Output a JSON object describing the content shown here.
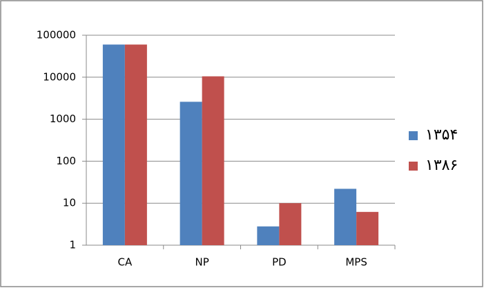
{
  "chart_data": {
    "type": "bar",
    "categories": [
      "CA",
      "NP",
      "PD",
      "MPS"
    ],
    "series": [
      {
        "name": "۱۳۵۴",
        "color": "#4f81bd",
        "values": [
          60000,
          2600,
          2.8,
          22
        ]
      },
      {
        "name": "۱۳۸۶",
        "color": "#c0504d",
        "values": [
          60000,
          10500,
          10,
          6.2
        ]
      }
    ],
    "ylim": [
      1,
      100000
    ],
    "yticks": [
      1,
      10,
      100,
      1000,
      10000,
      100000
    ],
    "log_scale": true,
    "grid": true,
    "legend": "right"
  }
}
